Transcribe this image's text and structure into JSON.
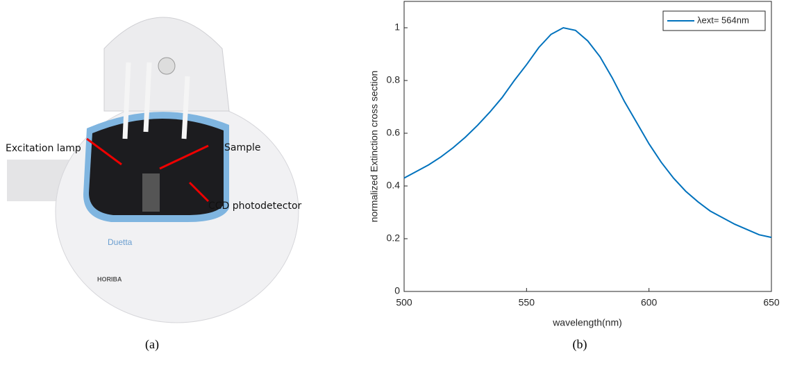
{
  "panel_a": {
    "labels": [
      "Excitation lamp",
      "Sample",
      "CCD photodetector"
    ],
    "brand": "Duetta",
    "maker": "HORIBA",
    "caption": "(a)"
  },
  "chart_data": {
    "type": "line",
    "caption": "(b)",
    "xlabel": "wavelength(nm)",
    "ylabel": "normalized Extinction cross section",
    "x": [
      500,
      505,
      510,
      515,
      520,
      525,
      530,
      535,
      540,
      545,
      550,
      555,
      560,
      565,
      570,
      575,
      580,
      585,
      590,
      595,
      600,
      605,
      610,
      615,
      620,
      625,
      630,
      635,
      640,
      645,
      650
    ],
    "series": [
      {
        "name": "λext= 564nm",
        "color": "#0072bd",
        "values": [
          0.43,
          0.455,
          0.48,
          0.51,
          0.545,
          0.585,
          0.63,
          0.68,
          0.735,
          0.8,
          0.86,
          0.925,
          0.975,
          1.0,
          0.99,
          0.95,
          0.89,
          0.81,
          0.72,
          0.64,
          0.56,
          0.49,
          0.43,
          0.38,
          0.34,
          0.305,
          0.28,
          0.255,
          0.235,
          0.215,
          0.205
        ]
      }
    ],
    "xlim": [
      500,
      650
    ],
    "ylim": [
      0,
      1.1
    ],
    "xticks": [
      500,
      550,
      600,
      650
    ],
    "yticks": [
      0,
      0.2,
      0.4,
      0.6,
      0.8,
      1
    ],
    "legend": "upper right"
  }
}
